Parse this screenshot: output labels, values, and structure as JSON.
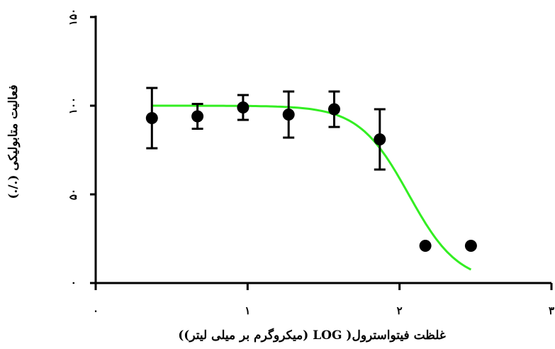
{
  "chart_data": {
    "type": "scatter",
    "xlabel": "غلظت فیتواسترول( LOG (میکروگرم بر میلی لیتر))",
    "ylabel": "فعالیت متابولیکی (./.)",
    "xlim": [
      0,
      3
    ],
    "ylim": [
      0,
      150
    ],
    "x_ticks": [
      {
        "value": 0,
        "label": "۰"
      },
      {
        "value": 1,
        "label": "۱"
      },
      {
        "value": 2,
        "label": "۲"
      },
      {
        "value": 3,
        "label": "۳"
      }
    ],
    "y_ticks": [
      {
        "value": 0,
        "label": "۰"
      },
      {
        "value": 50,
        "label": "۵۰"
      },
      {
        "value": 100,
        "label": "۱۰۰"
      },
      {
        "value": 150,
        "label": "۱۵۰"
      }
    ],
    "grid": false,
    "points": [
      {
        "x": 0.37,
        "y": 93,
        "err": 17
      },
      {
        "x": 0.67,
        "y": 94,
        "err": 7
      },
      {
        "x": 0.97,
        "y": 99,
        "err": 7
      },
      {
        "x": 1.27,
        "y": 95,
        "err": 13
      },
      {
        "x": 1.57,
        "y": 98,
        "err": 10
      },
      {
        "x": 1.87,
        "y": 81,
        "err": 17
      },
      {
        "x": 2.17,
        "y": 21,
        "err": 0
      },
      {
        "x": 2.47,
        "y": 21,
        "err": 0
      }
    ],
    "fit_curve": {
      "type": "sigmoid",
      "top": 100,
      "bottom": 0,
      "x50": 2.06,
      "slope": 6.1,
      "x_range": [
        0.37,
        2.47
      ],
      "color": "#33ee22"
    },
    "marker_color": "#000000"
  }
}
